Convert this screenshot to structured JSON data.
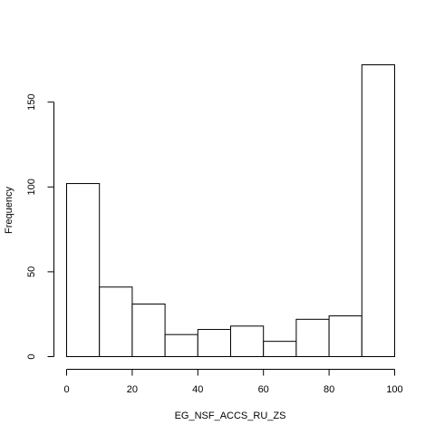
{
  "chart_data": {
    "type": "bar",
    "title": "",
    "xlabel": "EG_NSF_ACCS_RU_ZS",
    "ylabel": "Frequency",
    "bins": [
      {
        "from": 0,
        "to": 10,
        "count": 102
      },
      {
        "from": 10,
        "to": 20,
        "count": 41
      },
      {
        "from": 20,
        "to": 30,
        "count": 31
      },
      {
        "from": 30,
        "to": 40,
        "count": 13
      },
      {
        "from": 40,
        "to": 50,
        "count": 16
      },
      {
        "from": 50,
        "to": 60,
        "count": 18
      },
      {
        "from": 60,
        "to": 70,
        "count": 9
      },
      {
        "from": 70,
        "to": 80,
        "count": 22
      },
      {
        "from": 80,
        "to": 90,
        "count": 24
      },
      {
        "from": 90,
        "to": 100,
        "count": 172
      }
    ],
    "xlim": [
      0,
      100
    ],
    "ylim": [
      0,
      172
    ],
    "x_ticks": [
      0,
      20,
      40,
      60,
      80,
      100
    ],
    "y_ticks": [
      0,
      50,
      100,
      150
    ],
    "grid": false,
    "colors": {
      "bar_fill": "#ffffff",
      "bar_stroke": "#000000"
    }
  }
}
